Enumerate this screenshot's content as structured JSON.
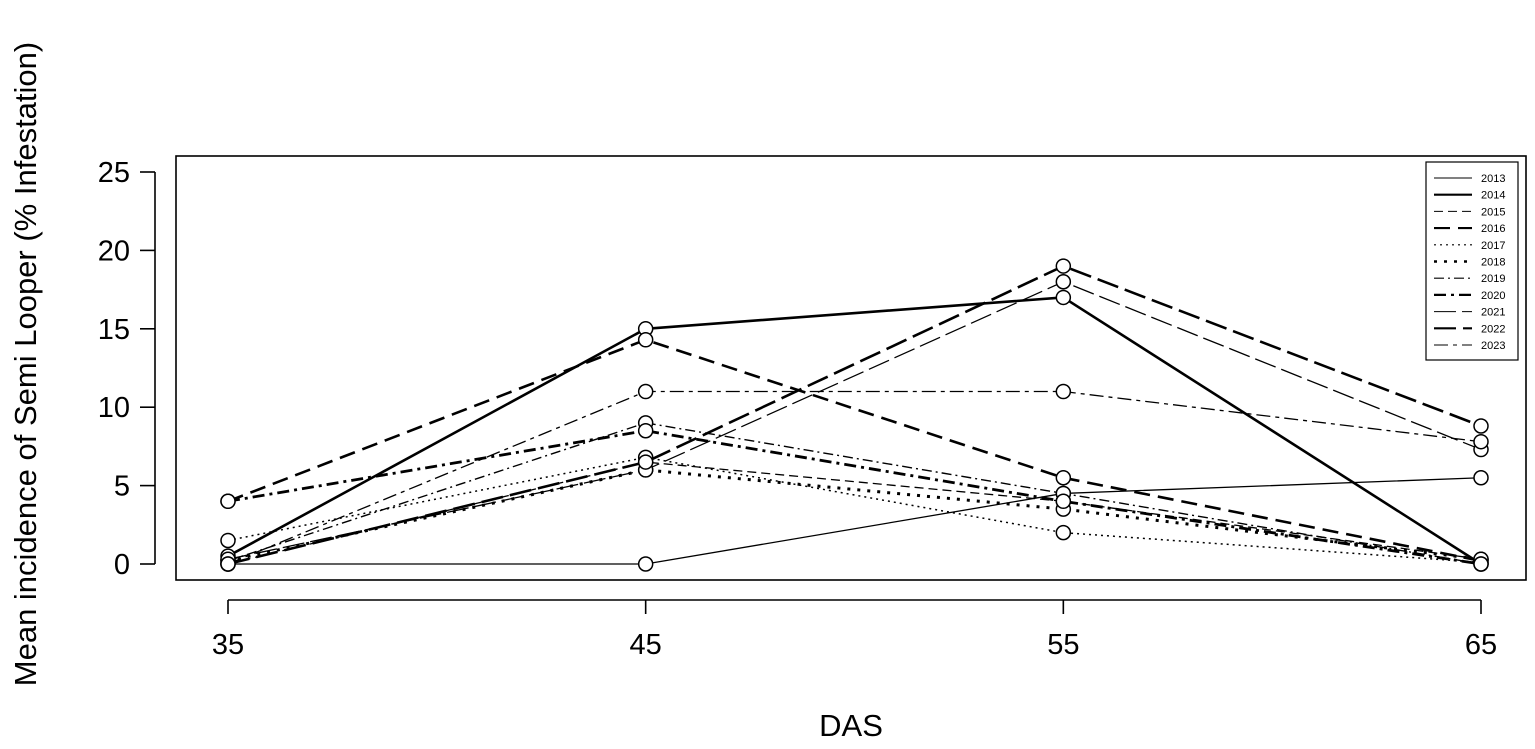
{
  "chart_data": {
    "type": "line",
    "title": "",
    "xlabel": "DAS",
    "ylabel": "Mean incidence of Semi Looper (% Infestation)",
    "x": [
      35,
      45,
      55,
      65
    ],
    "xticks": [
      "35",
      "45",
      "55",
      "65"
    ],
    "xlim": [
      35,
      65
    ],
    "yticks": [
      "0",
      "5",
      "10",
      "15",
      "20",
      "25"
    ],
    "ylim": [
      0,
      25
    ],
    "grid": false,
    "legend_position": "top-right",
    "series": [
      {
        "name": "2013",
        "values": [
          0.0,
          0.0,
          4.5,
          5.5
        ],
        "dash": "",
        "width": 1.3
      },
      {
        "name": "2014",
        "values": [
          0.5,
          15.0,
          17.0,
          0.0
        ],
        "dash": "",
        "width": 2.6
      },
      {
        "name": "2015",
        "values": [
          0.0,
          6.5,
          4.0,
          0.3
        ],
        "dash": "9,5",
        "width": 1.3
      },
      {
        "name": "2016",
        "values": [
          4.0,
          14.3,
          5.5,
          0.2
        ],
        "dash": "16,8",
        "width": 2.6
      },
      {
        "name": "2017",
        "values": [
          1.5,
          6.8,
          2.0,
          0.1
        ],
        "dash": "2,4",
        "width": 1.5
      },
      {
        "name": "2018",
        "values": [
          0.2,
          6.0,
          3.5,
          0.3
        ],
        "dash": "3,7",
        "width": 3.0
      },
      {
        "name": "2019",
        "values": [
          0.2,
          9.0,
          4.5,
          0.0
        ],
        "dash": "10,4,2,4",
        "width": 1.4
      },
      {
        "name": "2020",
        "values": [
          4.0,
          8.5,
          4.0,
          0.0
        ],
        "dash": "12,5,3,5",
        "width": 2.8
      },
      {
        "name": "2021",
        "values": [
          0.3,
          6.0,
          18.0,
          7.3
        ],
        "dash": "22,6",
        "width": 1.3
      },
      {
        "name": "2022",
        "values": [
          0.0,
          6.5,
          19.0,
          8.8
        ],
        "dash": "22,7",
        "width": 2.6
      },
      {
        "name": "2023",
        "values": [
          0.0,
          11.0,
          11.0,
          7.8
        ],
        "dash": "14,5,4,5",
        "width": 1.3
      }
    ]
  }
}
